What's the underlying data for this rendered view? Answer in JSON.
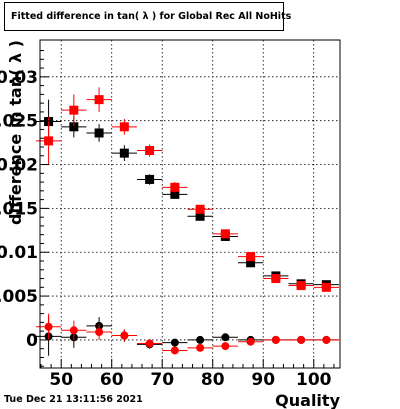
{
  "title": "Fitted difference in tan( λ ) for Global Rec All NoHits",
  "timestamp": "Tue Dec 21 13:11:56 2021",
  "chart_data": {
    "type": "scatter",
    "title": "Fitted difference in tan( λ ) for Global Rec All NoHits",
    "xlabel": "Quality",
    "ylabel": "difference in tan( λ )",
    "xlim": [
      45.8,
      105.2
    ],
    "ylim": [
      -0.0032,
      0.0342
    ],
    "grid": true,
    "x_ticks": [
      50,
      60,
      70,
      80,
      90,
      100
    ],
    "x_tick_labels": [
      "50",
      "60",
      "70",
      "80",
      "90",
      "100"
    ],
    "y_ticks": [
      0,
      0.005,
      0.01,
      0.015,
      0.02,
      0.025,
      0.03
    ],
    "y_tick_labels": [
      "0",
      "0.005",
      "0.01",
      "0.015",
      "0.02",
      "0.025",
      "0.03"
    ],
    "x_halfwidth": 2.5,
    "series": [
      {
        "marker": "square",
        "color": "#000000",
        "x": [
          47.5,
          52.5,
          57.5,
          62.5,
          67.5,
          72.5,
          77.5,
          82.5,
          87.5,
          92.5,
          97.5,
          102.5
        ],
        "y": [
          0.0249,
          0.0243,
          0.0236,
          0.0213,
          0.0183,
          0.0166,
          0.0141,
          0.0118,
          0.0088,
          0.0073,
          0.0064,
          0.0063
        ],
        "err": [
          0.0025,
          0.0012,
          0.001,
          0.0009,
          0.0006,
          0.0005,
          0.0004,
          0.0003,
          0.0003,
          0.0002,
          0.0002,
          0.0002
        ]
      },
      {
        "marker": "square",
        "color": "#ff0000",
        "x": [
          47.5,
          52.5,
          57.5,
          62.5,
          67.5,
          72.5,
          77.5,
          82.5,
          87.5,
          92.5,
          97.5,
          102.5
        ],
        "y": [
          0.0227,
          0.0262,
          0.0274,
          0.0243,
          0.0216,
          0.0174,
          0.0149,
          0.0121,
          0.0095,
          0.007,
          0.0062,
          0.006
        ],
        "err": [
          0.0027,
          0.0018,
          0.0014,
          0.0009,
          0.0007,
          0.0006,
          0.0004,
          0.0003,
          0.0003,
          0.0002,
          0.0002,
          0.0002
        ]
      },
      {
        "marker": "circle",
        "color": "#000000",
        "x": [
          47.5,
          52.5,
          57.5,
          62.5,
          67.5,
          72.5,
          77.5,
          82.5,
          87.5,
          92.5,
          97.5,
          102.5
        ],
        "y": [
          0.0004,
          0.0003,
          0.0016,
          0.0005,
          -0.0005,
          -0.0003,
          0.0,
          0.0003,
          0.0,
          0.0,
          0.0,
          0.0
        ],
        "err": [
          0.0022,
          0.0012,
          0.001,
          0.0007,
          0.0005,
          0.0004,
          0.0003,
          0.0002,
          0.0002,
          0.0002,
          0.0001,
          0.0001
        ]
      },
      {
        "marker": "circle",
        "color": "#ff0000",
        "x": [
          47.5,
          52.5,
          57.5,
          62.5,
          67.5,
          72.5,
          77.5,
          82.5,
          87.5,
          92.5,
          97.5,
          102.5
        ],
        "y": [
          0.0015,
          0.0011,
          0.0009,
          0.0005,
          -0.0004,
          -0.0012,
          -0.0009,
          -0.0007,
          -0.0002,
          0.0,
          0.0,
          0.0
        ],
        "err": [
          0.0015,
          0.0011,
          0.0009,
          0.0007,
          0.0005,
          0.0004,
          0.0003,
          0.0002,
          0.0002,
          0.0002,
          0.0001,
          0.0001
        ]
      }
    ]
  }
}
